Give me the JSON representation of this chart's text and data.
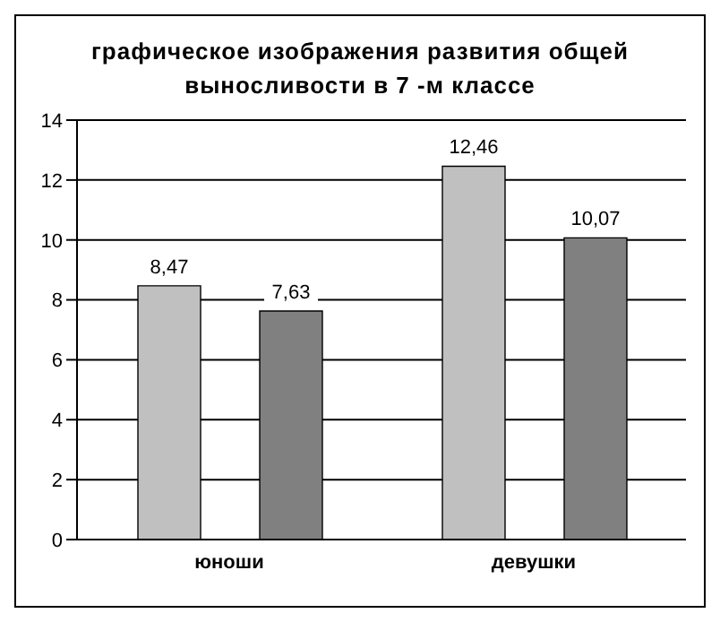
{
  "chart_data": {
    "type": "bar",
    "title": "графическое изображения развития общей выносливости в 7 -м классе",
    "categories": [
      "юноши",
      "девушки"
    ],
    "series": [
      {
        "color": "#c0c0c0",
        "values": [
          8.47,
          12.46
        ],
        "value_labels": [
          "8,47",
          "12,46"
        ]
      },
      {
        "color": "#808080",
        "values": [
          7.63,
          10.07
        ],
        "value_labels": [
          "7,63",
          "10,07"
        ]
      }
    ],
    "ylim": [
      0,
      14
    ],
    "yticks": [
      0,
      2,
      4,
      6,
      8,
      10,
      12,
      14
    ],
    "grid": "y"
  }
}
